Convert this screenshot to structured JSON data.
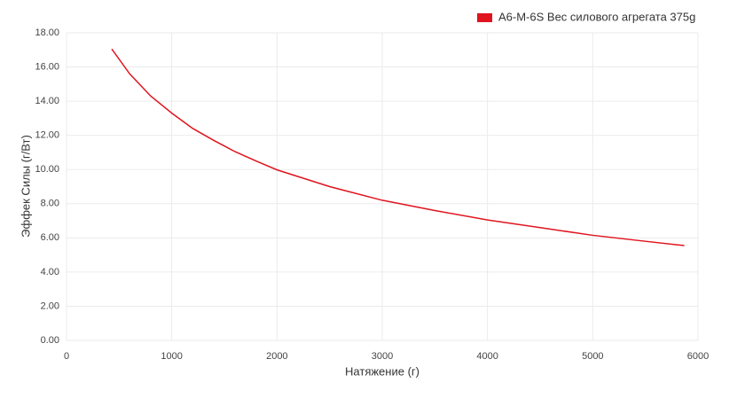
{
  "chart_data": {
    "type": "line",
    "x_label": "Натяжение (г)",
    "y_label": "Эффек Силы (г/Вт)",
    "x": [
      430,
      600,
      800,
      1000,
      1200,
      1400,
      1600,
      1800,
      2000,
      2500,
      3000,
      3500,
      4000,
      4500,
      5000,
      5500,
      5870
    ],
    "series": [
      {
        "name": "A6-M-6S Вес силового агрегата 375g",
        "color": "#e0141e",
        "values": [
          17.05,
          15.6,
          14.3,
          13.3,
          12.4,
          11.7,
          11.05,
          10.5,
          9.98,
          9.0,
          8.2,
          7.6,
          7.05,
          6.6,
          6.15,
          5.8,
          5.55
        ]
      }
    ],
    "xlim": [
      0,
      6000
    ],
    "xticks": [
      0,
      1000,
      2000,
      3000,
      4000,
      5000,
      6000
    ],
    "ylim": [
      0,
      18
    ],
    "yticks": [
      {
        "value": 0,
        "label": "0.00"
      },
      {
        "value": 2,
        "label": "2.00"
      },
      {
        "value": 4,
        "label": "4.00"
      },
      {
        "value": 6,
        "label": "6.00"
      },
      {
        "value": 8,
        "label": "8.00"
      },
      {
        "value": 10,
        "label": "10.00"
      },
      {
        "value": 12,
        "label": "12.00"
      },
      {
        "value": 14,
        "label": "14.00"
      },
      {
        "value": 16,
        "label": "16.00"
      },
      {
        "value": 18,
        "label": "18.00"
      }
    ],
    "grid": true,
    "legend": "top-right"
  }
}
